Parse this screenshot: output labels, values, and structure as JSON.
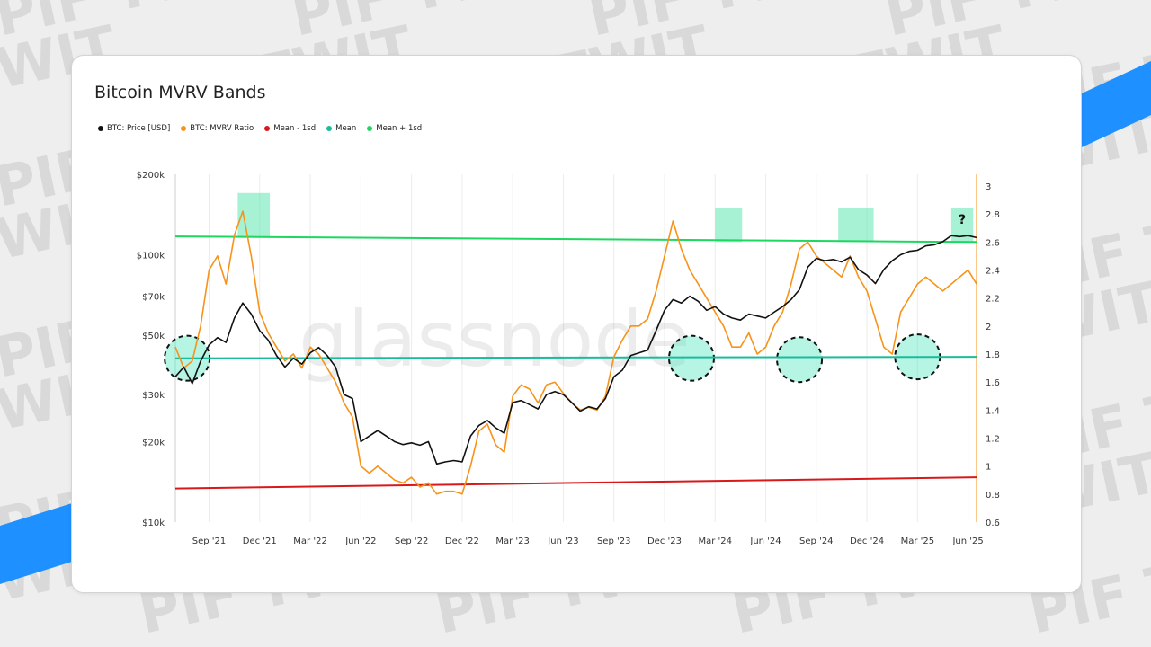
{
  "background": {
    "watermark_text": "PIF TWIT",
    "color": "#eeeeee",
    "stripe_color": "#1e90ff"
  },
  "chart_data": {
    "type": "line",
    "title": "Bitcoin MVRV Bands",
    "watermark": "glassnode",
    "annotation_symbol": "?",
    "y_scale_left": "log",
    "ylim_left": [
      10000,
      200000
    ],
    "ylim_right": [
      0.6,
      3.0
    ],
    "y_ticks_left": [
      {
        "value": 200000,
        "label": "$200k"
      },
      {
        "value": 100000,
        "label": "$100k"
      },
      {
        "value": 70000,
        "label": "$70k"
      },
      {
        "value": 50000,
        "label": "$50k"
      },
      {
        "value": 30000,
        "label": "$30k"
      },
      {
        "value": 20000,
        "label": "$20k"
      },
      {
        "value": 10000,
        "label": "$10k"
      }
    ],
    "y_ticks_right": [
      {
        "value": 3.0,
        "label": "3"
      },
      {
        "value": 2.8,
        "label": "2.8"
      },
      {
        "value": 2.6,
        "label": "2.6"
      },
      {
        "value": 2.4,
        "label": "2.4"
      },
      {
        "value": 2.2,
        "label": "2.2"
      },
      {
        "value": 2.0,
        "label": "2"
      },
      {
        "value": 1.8,
        "label": "1.8"
      },
      {
        "value": 1.6,
        "label": "1.6"
      },
      {
        "value": 1.4,
        "label": "1.4"
      },
      {
        "value": 1.2,
        "label": "1.2"
      },
      {
        "value": 1.0,
        "label": "1"
      },
      {
        "value": 0.8,
        "label": "0.8"
      },
      {
        "value": 0.6,
        "label": "0.6"
      }
    ],
    "xlim": [
      0,
      47.5
    ],
    "x_ticks": [
      {
        "value": 2.0,
        "label": "Sep '21"
      },
      {
        "value": 5.0,
        "label": "Dec '21"
      },
      {
        "value": 8.0,
        "label": "Mar '22"
      },
      {
        "value": 11.0,
        "label": "Jun '22"
      },
      {
        "value": 14.0,
        "label": "Sep '22"
      },
      {
        "value": 17.0,
        "label": "Dec '22"
      },
      {
        "value": 20.0,
        "label": "Mar '23"
      },
      {
        "value": 23.0,
        "label": "Jun '23"
      },
      {
        "value": 26.0,
        "label": "Sep '23"
      },
      {
        "value": 29.0,
        "label": "Dec '23"
      },
      {
        "value": 32.0,
        "label": "Mar '24"
      },
      {
        "value": 35.0,
        "label": "Jun '24"
      },
      {
        "value": 38.0,
        "label": "Sep '24"
      },
      {
        "value": 41.0,
        "label": "Dec '24"
      },
      {
        "value": 44.0,
        "label": "Mar '25"
      },
      {
        "value": 47.0,
        "label": "Jun '25"
      }
    ],
    "series": [
      {
        "name": "BTC: Price [USD]",
        "color": "#111111",
        "axis": "left",
        "x": [
          0,
          0.5,
          1,
          1.5,
          2,
          2.5,
          3,
          3.5,
          4,
          4.5,
          5,
          5.5,
          6,
          6.5,
          7,
          7.5,
          8,
          8.5,
          9,
          9.5,
          10,
          10.5,
          11,
          11.5,
          12,
          12.5,
          13,
          13.5,
          14,
          14.5,
          15,
          15.5,
          16,
          16.5,
          17,
          17.5,
          18,
          18.5,
          19,
          19.5,
          20,
          20.5,
          21,
          21.5,
          22,
          22.5,
          23,
          23.5,
          24,
          24.5,
          25,
          25.5,
          26,
          26.5,
          27,
          27.5,
          28,
          28.5,
          29,
          29.5,
          30,
          30.5,
          31,
          31.5,
          32,
          32.5,
          33,
          33.5,
          34,
          34.5,
          35,
          35.5,
          36,
          36.5,
          37,
          37.5,
          38,
          38.5,
          39,
          39.5,
          40,
          40.5,
          41,
          41.5,
          42,
          42.5,
          43,
          43.5,
          44,
          44.5,
          45,
          45.5,
          46,
          46.5,
          47,
          47.5
        ],
        "values": [
          35000,
          38000,
          33000,
          40000,
          46000,
          49000,
          47000,
          58000,
          66000,
          60000,
          52000,
          48000,
          42000,
          38000,
          41000,
          39000,
          43000,
          45000,
          42000,
          38000,
          30000,
          29000,
          20000,
          21000,
          22000,
          21000,
          20000,
          19500,
          19800,
          19400,
          20000,
          16500,
          16800,
          17000,
          16800,
          21000,
          23000,
          24000,
          22500,
          21500,
          28000,
          28500,
          27500,
          26500,
          30000,
          30800,
          30000,
          28000,
          26000,
          27000,
          26500,
          29000,
          35000,
          37000,
          42000,
          43000,
          44000,
          52000,
          62000,
          68000,
          66000,
          70000,
          67000,
          62000,
          64000,
          60000,
          58000,
          57000,
          60000,
          59000,
          58000,
          61000,
          64000,
          68000,
          74000,
          90000,
          97000,
          95000,
          96000,
          94000,
          98000,
          88000,
          84000,
          78000,
          88000,
          95000,
          100000,
          103000,
          104000,
          108000,
          109000,
          112000,
          118000,
          117000,
          118000,
          116000
        ],
        "points_per_date": 1
      },
      {
        "name": "BTC: MVRV Ratio",
        "color": "#f7931a",
        "axis": "right",
        "x": [
          0,
          0.5,
          1,
          1.5,
          2,
          2.5,
          3,
          3.5,
          4,
          4.5,
          5,
          5.5,
          6,
          6.5,
          7,
          7.5,
          8,
          8.5,
          9,
          9.5,
          10,
          10.5,
          11,
          11.5,
          12,
          12.5,
          13,
          13.5,
          14,
          14.5,
          15,
          15.5,
          16,
          16.5,
          17,
          17.5,
          18,
          18.5,
          19,
          19.5,
          20,
          20.5,
          21,
          21.5,
          22,
          22.5,
          23,
          23.5,
          24,
          24.5,
          25,
          25.5,
          26,
          26.5,
          27,
          27.5,
          28,
          28.5,
          29,
          29.5,
          30,
          30.5,
          31,
          31.5,
          32,
          32.5,
          33,
          33.5,
          34,
          34.5,
          35,
          35.5,
          36,
          36.5,
          37,
          37.5,
          38,
          38.5,
          39,
          39.5,
          40,
          40.5,
          41,
          41.5,
          42,
          42.5,
          43,
          43.5,
          44,
          44.5,
          45,
          45.5,
          46,
          46.5,
          47,
          47.5
        ],
        "values": [
          1.85,
          1.7,
          1.75,
          2.0,
          2.4,
          2.5,
          2.3,
          2.65,
          2.82,
          2.5,
          2.1,
          1.95,
          1.85,
          1.75,
          1.8,
          1.7,
          1.85,
          1.8,
          1.7,
          1.6,
          1.45,
          1.35,
          1.0,
          0.95,
          1.0,
          0.95,
          0.9,
          0.88,
          0.92,
          0.85,
          0.88,
          0.8,
          0.82,
          0.82,
          0.8,
          1.0,
          1.25,
          1.3,
          1.15,
          1.1,
          1.5,
          1.58,
          1.55,
          1.45,
          1.58,
          1.6,
          1.52,
          1.45,
          1.4,
          1.42,
          1.4,
          1.5,
          1.78,
          1.9,
          2.0,
          2.0,
          2.05,
          2.25,
          2.5,
          2.75,
          2.55,
          2.4,
          2.3,
          2.2,
          2.1,
          2.0,
          1.85,
          1.85,
          1.95,
          1.8,
          1.85,
          2.0,
          2.1,
          2.3,
          2.55,
          2.6,
          2.5,
          2.45,
          2.4,
          2.35,
          2.5,
          2.35,
          2.25,
          2.05,
          1.85,
          1.8,
          2.1,
          2.2,
          2.3,
          2.35,
          2.3,
          2.25,
          2.3,
          2.35,
          2.4,
          2.3
        ]
      },
      {
        "name": "Mean - 1sd",
        "color": "#d7191c",
        "axis": "right",
        "x": [
          0,
          47.5
        ],
        "values": [
          0.84,
          0.92
        ]
      },
      {
        "name": "Mean",
        "color": "#1abc9c",
        "axis": "right",
        "x": [
          0,
          47.5
        ],
        "values": [
          1.77,
          1.78
        ]
      },
      {
        "name": "Mean + 1sd",
        "color": "#1ed760",
        "axis": "right",
        "x": [
          0,
          47.5
        ],
        "values": [
          2.64,
          2.6
        ]
      }
    ],
    "highlight_boxes": [
      {
        "x_start": 3.7,
        "x_end": 5.6,
        "y_top": 2.95,
        "y_bottom": 2.64
      },
      {
        "x_start": 32.0,
        "x_end": 33.6,
        "y_top": 2.84,
        "y_bottom": 2.6
      },
      {
        "x_start": 39.3,
        "x_end": 41.4,
        "y_top": 2.84,
        "y_bottom": 2.6
      },
      {
        "x_start": 46.0,
        "x_end": 47.3,
        "y_top": 2.84,
        "y_bottom": 2.6
      }
    ],
    "highlight_circles": [
      {
        "x": 0.7,
        "y": 1.77
      },
      {
        "x": 30.6,
        "y": 1.77
      },
      {
        "x": 37.0,
        "y": 1.76
      },
      {
        "x": 44.0,
        "y": 1.78
      }
    ],
    "legend_position": "top-left",
    "grid": "vertical"
  }
}
